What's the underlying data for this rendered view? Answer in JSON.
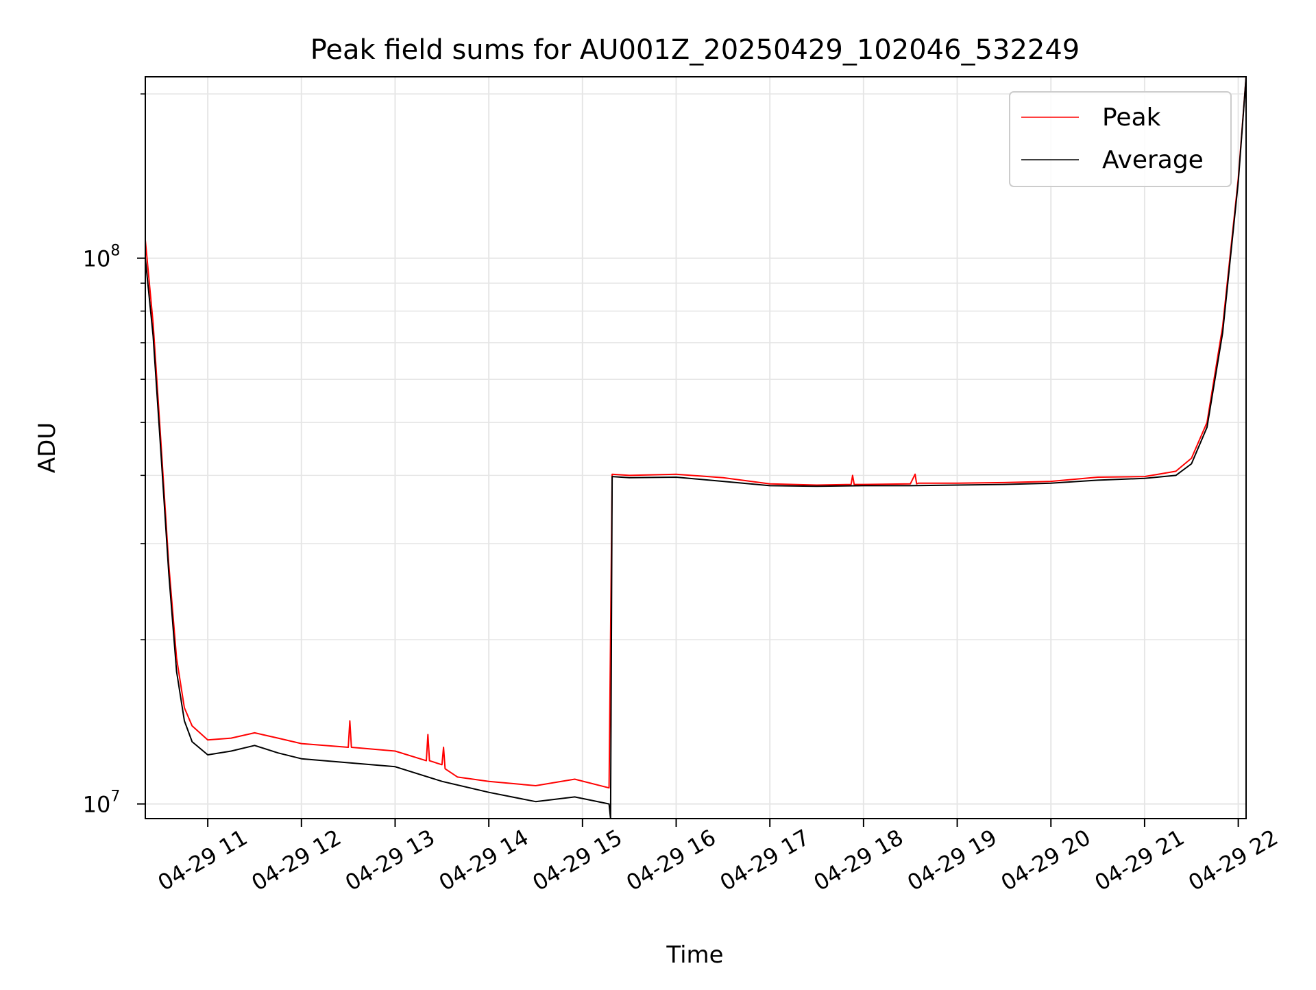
{
  "chart_data": {
    "type": "line",
    "title": "Peak field sums for AU001Z_20250429_102046_532249",
    "xlabel": "Time",
    "ylabel": "ADU",
    "yscale": "log",
    "grid": true,
    "legend_position": "top-right",
    "xlim": [
      "2025-04-29T10:20",
      "2025-04-29T22:05"
    ],
    "ylim": [
      9400000,
      215000000
    ],
    "x_ticks": [
      {
        "value": "2025-04-29T11:00",
        "label": "04-29 11"
      },
      {
        "value": "2025-04-29T12:00",
        "label": "04-29 12"
      },
      {
        "value": "2025-04-29T13:00",
        "label": "04-29 13"
      },
      {
        "value": "2025-04-29T14:00",
        "label": "04-29 14"
      },
      {
        "value": "2025-04-29T15:00",
        "label": "04-29 15"
      },
      {
        "value": "2025-04-29T16:00",
        "label": "04-29 16"
      },
      {
        "value": "2025-04-29T17:00",
        "label": "04-29 17"
      },
      {
        "value": "2025-04-29T18:00",
        "label": "04-29 18"
      },
      {
        "value": "2025-04-29T19:00",
        "label": "04-29 19"
      },
      {
        "value": "2025-04-29T20:00",
        "label": "04-29 20"
      },
      {
        "value": "2025-04-29T21:00",
        "label": "04-29 21"
      },
      {
        "value": "2025-04-29T22:00",
        "label": "04-29 22"
      }
    ],
    "y_ticks": [
      {
        "value": 10000000,
        "base": "10",
        "exp": "7"
      },
      {
        "value": 100000000,
        "base": "10",
        "exp": "8"
      }
    ],
    "series": [
      {
        "name": "Peak",
        "color": "#ff0000",
        "x": [
          "2025-04-29T10:20",
          "2025-04-29T10:25",
          "2025-04-29T10:30",
          "2025-04-29T10:35",
          "2025-04-29T10:40",
          "2025-04-29T10:45",
          "2025-04-29T10:50",
          "2025-04-29T11:00",
          "2025-04-29T11:15",
          "2025-04-29T11:30",
          "2025-04-29T11:45",
          "2025-04-29T12:00",
          "2025-04-29T12:30",
          "2025-04-29T12:31",
          "2025-04-29T12:32",
          "2025-04-29T13:00",
          "2025-04-29T13:20",
          "2025-04-29T13:21",
          "2025-04-29T13:22",
          "2025-04-29T13:30",
          "2025-04-29T13:31",
          "2025-04-29T13:32",
          "2025-04-29T13:40",
          "2025-04-29T14:00",
          "2025-04-29T14:30",
          "2025-04-29T14:55",
          "2025-04-29T15:17",
          "2025-04-29T15:19",
          "2025-04-29T15:30",
          "2025-04-29T16:00",
          "2025-04-29T16:30",
          "2025-04-29T17:00",
          "2025-04-29T17:30",
          "2025-04-29T17:52",
          "2025-04-29T17:53",
          "2025-04-29T17:54",
          "2025-04-29T18:00",
          "2025-04-29T18:30",
          "2025-04-29T18:33",
          "2025-04-29T18:34",
          "2025-04-29T18:35",
          "2025-04-29T19:00",
          "2025-04-29T19:30",
          "2025-04-29T20:00",
          "2025-04-29T20:30",
          "2025-04-29T21:00",
          "2025-04-29T21:20",
          "2025-04-29T21:30",
          "2025-04-29T21:40",
          "2025-04-29T21:50",
          "2025-04-29T22:00",
          "2025-04-29T22:05"
        ],
        "y": [
          108000000,
          76000000,
          46000000,
          27500000,
          18500000,
          15000000,
          13900000,
          13100000,
          13200000,
          13500000,
          13200000,
          12900000,
          12700000,
          14200000,
          12700000,
          12500000,
          12000000,
          13400000,
          12000000,
          11800000,
          12700000,
          11600000,
          11200000,
          11000000,
          10800000,
          11100000,
          10700000,
          40200000,
          40000000,
          40200000,
          39600000,
          38600000,
          38400000,
          38500000,
          40000000,
          38500000,
          38500000,
          38600000,
          40200000,
          38600000,
          38700000,
          38700000,
          38800000,
          39000000,
          39700000,
          39800000,
          40700000,
          43000000,
          50000000,
          75000000,
          140000000,
          215000000
        ]
      },
      {
        "name": "Average",
        "color": "#000000",
        "x": [
          "2025-04-29T10:20",
          "2025-04-29T10:25",
          "2025-04-29T10:30",
          "2025-04-29T10:35",
          "2025-04-29T10:40",
          "2025-04-29T10:45",
          "2025-04-29T10:50",
          "2025-04-29T11:00",
          "2025-04-29T11:15",
          "2025-04-29T11:30",
          "2025-04-29T11:45",
          "2025-04-29T12:00",
          "2025-04-29T12:30",
          "2025-04-29T13:00",
          "2025-04-29T13:30",
          "2025-04-29T14:00",
          "2025-04-29T14:30",
          "2025-04-29T14:55",
          "2025-04-29T15:17",
          "2025-04-29T15:18",
          "2025-04-29T15:19",
          "2025-04-29T15:30",
          "2025-04-29T16:00",
          "2025-04-29T16:30",
          "2025-04-29T17:00",
          "2025-04-29T17:30",
          "2025-04-29T18:00",
          "2025-04-29T18:30",
          "2025-04-29T19:00",
          "2025-04-29T19:30",
          "2025-04-29T20:00",
          "2025-04-29T20:30",
          "2025-04-29T21:00",
          "2025-04-29T21:20",
          "2025-04-29T21:30",
          "2025-04-29T21:40",
          "2025-04-29T21:50",
          "2025-04-29T22:00",
          "2025-04-29T22:05"
        ],
        "y": [
          100000000,
          72000000,
          44000000,
          26500000,
          17500000,
          14200000,
          13000000,
          12300000,
          12500000,
          12800000,
          12400000,
          12100000,
          11900000,
          11700000,
          11000000,
          10500000,
          10100000,
          10300000,
          10000000,
          9400000,
          39800000,
          39600000,
          39700000,
          39000000,
          38300000,
          38200000,
          38300000,
          38300000,
          38400000,
          38500000,
          38700000,
          39200000,
          39500000,
          40000000,
          42000000,
          49000000,
          73000000,
          138000000,
          215000000
        ]
      }
    ]
  }
}
